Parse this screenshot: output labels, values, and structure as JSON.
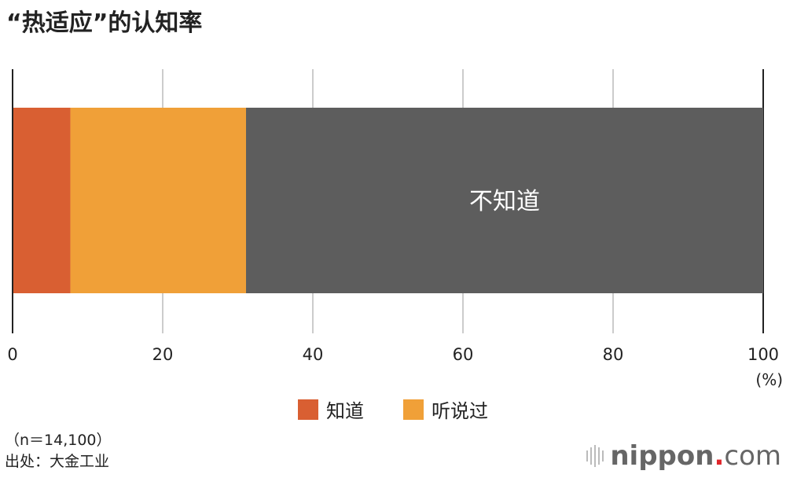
{
  "title": "“热适应”的认知率",
  "chart_data": {
    "type": "bar",
    "orientation": "horizontal-stacked",
    "title": "“热适应”的认知率",
    "categories": [
      ""
    ],
    "series": [
      {
        "name": "知道",
        "values": [
          7.7
        ],
        "color": "#d95f32"
      },
      {
        "name": "听说过",
        "values": [
          23.4
        ],
        "color": "#f0a038"
      },
      {
        "name": "不知道",
        "values": [
          68.9
        ],
        "color": "#5d5d5d",
        "label": "不知道"
      }
    ],
    "xlim": [
      0,
      100
    ],
    "xticks": [
      "0",
      "20",
      "40",
      "60",
      "80",
      "100"
    ],
    "xunit": "(%)",
    "grid": true,
    "legend": [
      {
        "label": "知道",
        "color": "#d95f32"
      },
      {
        "label": "听说过",
        "color": "#f0a038"
      }
    ],
    "legend_placement": "bottom"
  },
  "notes": {
    "sample": "（n＝14,100）",
    "source": "出处：大金工业"
  },
  "logo": {
    "name": "nippon",
    "dot": ".",
    "tld": "com"
  }
}
